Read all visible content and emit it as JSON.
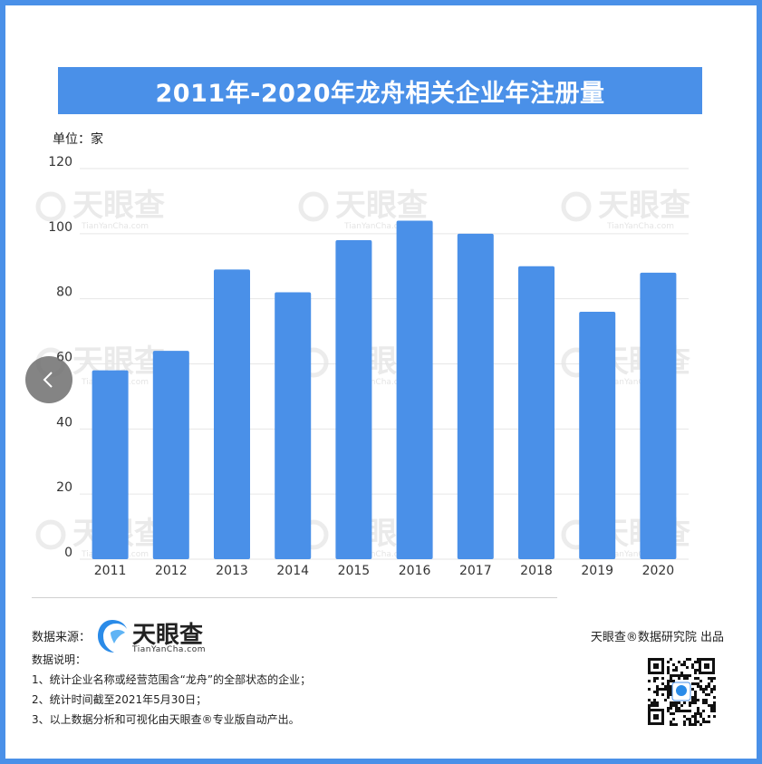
{
  "title": "2011年-2020年龙舟相关企业年注册量",
  "unit_label": "单位：家",
  "watermark": {
    "text": "天眼查",
    "sub": "TianYanCha.com"
  },
  "chart_data": {
    "type": "bar",
    "categories": [
      "2011",
      "2012",
      "2013",
      "2014",
      "2015",
      "2016",
      "2017",
      "2018",
      "2019",
      "2020"
    ],
    "values": [
      58,
      64,
      89,
      82,
      98,
      104,
      100,
      90,
      76,
      88
    ],
    "ylim": [
      0,
      120
    ],
    "yticks": [
      0,
      20,
      40,
      60,
      80,
      100,
      120
    ],
    "grid": true,
    "bar_color": "#4a90e8",
    "grid_color": "#e6e6e6",
    "legend": "none"
  },
  "footer": {
    "source_label": "数据来源：",
    "logo_text": "天眼查",
    "logo_sub": "TianYanCha.com",
    "credit": "天眼查®数据研究院 出品",
    "notes_title": "数据说明：",
    "notes": [
      "1、统计企业名称或经营范围含“龙舟”的全部状态的企业；",
      "2、统计时间截至2021年5月30日；",
      "3、以上数据分析和可视化由天眼查®专业版自动产出。"
    ]
  },
  "nav": {
    "icon": "chevron-left-icon"
  },
  "colors": {
    "accent": "#4a90e8"
  }
}
